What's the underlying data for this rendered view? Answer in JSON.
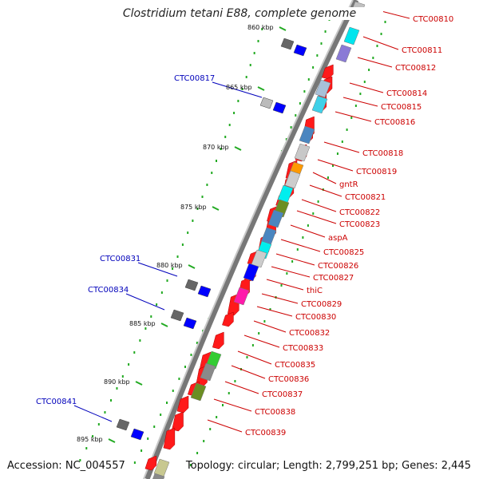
{
  "map": {
    "title": "Clostridium tetani E88, complete genome",
    "accession": "Accession: NC_004557",
    "topology": "Topology: circular; Length: 2,799,251 bp; Genes: 2,445"
  },
  "scale_labels": [
    "860 kbp",
    "865 kbp",
    "870 kbp",
    "875 kbp",
    "880 kbp",
    "885 kbp",
    "890 kbp",
    "895 kbp"
  ],
  "left_labels": [
    "CTC00817",
    "CTC00831",
    "CTC00834",
    "CTC00841"
  ],
  "right_labels": [
    "CTC00810",
    "CTC00811",
    "CTC00812",
    "CTC00814",
    "CTC00815",
    "CTC00816",
    "CTC00818",
    "CTC00819",
    "gntR",
    "CTC00821",
    "CTC00822",
    "CTC00823",
    "aspA",
    "CTC00825",
    "CTC00826",
    "CTC00827",
    "thiC",
    "CTC00829",
    "CTC00830",
    "CTC00832",
    "CTC00833",
    "CTC00835",
    "CTC00836",
    "CTC00837",
    "CTC00838",
    "CTC00839"
  ],
  "colors": {
    "gene": "#ff1a1a",
    "label_red": "#cc0000",
    "label_blue": "#0000bb",
    "ruler": "#22aa22"
  }
}
